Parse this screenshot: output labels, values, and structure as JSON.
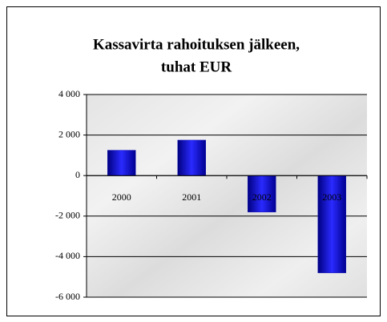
{
  "chart_data": {
    "type": "bar",
    "title": [
      "Kassavirta rahoituksen jälkeen,",
      "tuhat EUR"
    ],
    "categories": [
      "2000",
      "2001",
      "2002",
      "2003"
    ],
    "values": [
      1250,
      1750,
      -1800,
      -4800
    ],
    "color": "#1a1ab4",
    "ylim": [
      -6000,
      4000
    ],
    "yticks": [
      {
        "value": -6000,
        "label": "-6 000"
      },
      {
        "value": -4000,
        "label": "-4 000"
      },
      {
        "value": -2000,
        "label": "-2 000"
      },
      0,
      {
        "value": 2000,
        "label": "2 000"
      },
      {
        "value": 4000,
        "label": "4 000"
      }
    ],
    "grid": true
  }
}
